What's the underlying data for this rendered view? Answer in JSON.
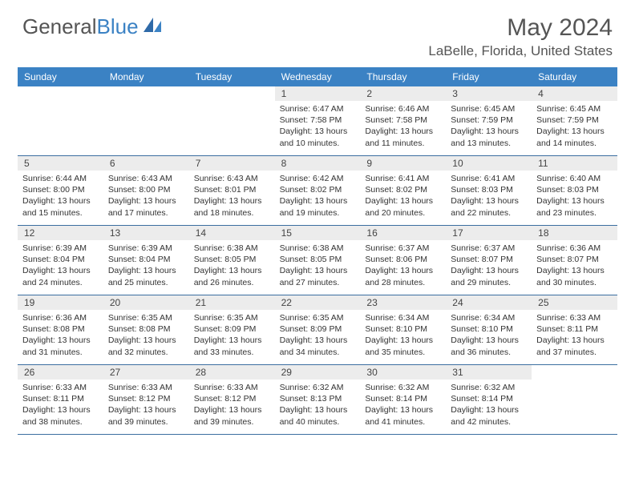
{
  "logo": {
    "text1": "General",
    "text2": "Blue"
  },
  "title": "May 2024",
  "location": "LaBelle, Florida, United States",
  "day_names": [
    "Sunday",
    "Monday",
    "Tuesday",
    "Wednesday",
    "Thursday",
    "Friday",
    "Saturday"
  ],
  "colors": {
    "header_bg": "#3b82c4",
    "header_text": "#ffffff",
    "daynum_bg": "#ececec",
    "border": "#3b6ea0",
    "title_color": "#555555"
  },
  "weeks": [
    [
      {
        "n": "",
        "sr": "",
        "ss": "",
        "dl1": "",
        "dl2": ""
      },
      {
        "n": "",
        "sr": "",
        "ss": "",
        "dl1": "",
        "dl2": ""
      },
      {
        "n": "",
        "sr": "",
        "ss": "",
        "dl1": "",
        "dl2": ""
      },
      {
        "n": "1",
        "sr": "Sunrise: 6:47 AM",
        "ss": "Sunset: 7:58 PM",
        "dl1": "Daylight: 13 hours",
        "dl2": "and 10 minutes."
      },
      {
        "n": "2",
        "sr": "Sunrise: 6:46 AM",
        "ss": "Sunset: 7:58 PM",
        "dl1": "Daylight: 13 hours",
        "dl2": "and 11 minutes."
      },
      {
        "n": "3",
        "sr": "Sunrise: 6:45 AM",
        "ss": "Sunset: 7:59 PM",
        "dl1": "Daylight: 13 hours",
        "dl2": "and 13 minutes."
      },
      {
        "n": "4",
        "sr": "Sunrise: 6:45 AM",
        "ss": "Sunset: 7:59 PM",
        "dl1": "Daylight: 13 hours",
        "dl2": "and 14 minutes."
      }
    ],
    [
      {
        "n": "5",
        "sr": "Sunrise: 6:44 AM",
        "ss": "Sunset: 8:00 PM",
        "dl1": "Daylight: 13 hours",
        "dl2": "and 15 minutes."
      },
      {
        "n": "6",
        "sr": "Sunrise: 6:43 AM",
        "ss": "Sunset: 8:00 PM",
        "dl1": "Daylight: 13 hours",
        "dl2": "and 17 minutes."
      },
      {
        "n": "7",
        "sr": "Sunrise: 6:43 AM",
        "ss": "Sunset: 8:01 PM",
        "dl1": "Daylight: 13 hours",
        "dl2": "and 18 minutes."
      },
      {
        "n": "8",
        "sr": "Sunrise: 6:42 AM",
        "ss": "Sunset: 8:02 PM",
        "dl1": "Daylight: 13 hours",
        "dl2": "and 19 minutes."
      },
      {
        "n": "9",
        "sr": "Sunrise: 6:41 AM",
        "ss": "Sunset: 8:02 PM",
        "dl1": "Daylight: 13 hours",
        "dl2": "and 20 minutes."
      },
      {
        "n": "10",
        "sr": "Sunrise: 6:41 AM",
        "ss": "Sunset: 8:03 PM",
        "dl1": "Daylight: 13 hours",
        "dl2": "and 22 minutes."
      },
      {
        "n": "11",
        "sr": "Sunrise: 6:40 AM",
        "ss": "Sunset: 8:03 PM",
        "dl1": "Daylight: 13 hours",
        "dl2": "and 23 minutes."
      }
    ],
    [
      {
        "n": "12",
        "sr": "Sunrise: 6:39 AM",
        "ss": "Sunset: 8:04 PM",
        "dl1": "Daylight: 13 hours",
        "dl2": "and 24 minutes."
      },
      {
        "n": "13",
        "sr": "Sunrise: 6:39 AM",
        "ss": "Sunset: 8:04 PM",
        "dl1": "Daylight: 13 hours",
        "dl2": "and 25 minutes."
      },
      {
        "n": "14",
        "sr": "Sunrise: 6:38 AM",
        "ss": "Sunset: 8:05 PM",
        "dl1": "Daylight: 13 hours",
        "dl2": "and 26 minutes."
      },
      {
        "n": "15",
        "sr": "Sunrise: 6:38 AM",
        "ss": "Sunset: 8:05 PM",
        "dl1": "Daylight: 13 hours",
        "dl2": "and 27 minutes."
      },
      {
        "n": "16",
        "sr": "Sunrise: 6:37 AM",
        "ss": "Sunset: 8:06 PM",
        "dl1": "Daylight: 13 hours",
        "dl2": "and 28 minutes."
      },
      {
        "n": "17",
        "sr": "Sunrise: 6:37 AM",
        "ss": "Sunset: 8:07 PM",
        "dl1": "Daylight: 13 hours",
        "dl2": "and 29 minutes."
      },
      {
        "n": "18",
        "sr": "Sunrise: 6:36 AM",
        "ss": "Sunset: 8:07 PM",
        "dl1": "Daylight: 13 hours",
        "dl2": "and 30 minutes."
      }
    ],
    [
      {
        "n": "19",
        "sr": "Sunrise: 6:36 AM",
        "ss": "Sunset: 8:08 PM",
        "dl1": "Daylight: 13 hours",
        "dl2": "and 31 minutes."
      },
      {
        "n": "20",
        "sr": "Sunrise: 6:35 AM",
        "ss": "Sunset: 8:08 PM",
        "dl1": "Daylight: 13 hours",
        "dl2": "and 32 minutes."
      },
      {
        "n": "21",
        "sr": "Sunrise: 6:35 AM",
        "ss": "Sunset: 8:09 PM",
        "dl1": "Daylight: 13 hours",
        "dl2": "and 33 minutes."
      },
      {
        "n": "22",
        "sr": "Sunrise: 6:35 AM",
        "ss": "Sunset: 8:09 PM",
        "dl1": "Daylight: 13 hours",
        "dl2": "and 34 minutes."
      },
      {
        "n": "23",
        "sr": "Sunrise: 6:34 AM",
        "ss": "Sunset: 8:10 PM",
        "dl1": "Daylight: 13 hours",
        "dl2": "and 35 minutes."
      },
      {
        "n": "24",
        "sr": "Sunrise: 6:34 AM",
        "ss": "Sunset: 8:10 PM",
        "dl1": "Daylight: 13 hours",
        "dl2": "and 36 minutes."
      },
      {
        "n": "25",
        "sr": "Sunrise: 6:33 AM",
        "ss": "Sunset: 8:11 PM",
        "dl1": "Daylight: 13 hours",
        "dl2": "and 37 minutes."
      }
    ],
    [
      {
        "n": "26",
        "sr": "Sunrise: 6:33 AM",
        "ss": "Sunset: 8:11 PM",
        "dl1": "Daylight: 13 hours",
        "dl2": "and 38 minutes."
      },
      {
        "n": "27",
        "sr": "Sunrise: 6:33 AM",
        "ss": "Sunset: 8:12 PM",
        "dl1": "Daylight: 13 hours",
        "dl2": "and 39 minutes."
      },
      {
        "n": "28",
        "sr": "Sunrise: 6:33 AM",
        "ss": "Sunset: 8:12 PM",
        "dl1": "Daylight: 13 hours",
        "dl2": "and 39 minutes."
      },
      {
        "n": "29",
        "sr": "Sunrise: 6:32 AM",
        "ss": "Sunset: 8:13 PM",
        "dl1": "Daylight: 13 hours",
        "dl2": "and 40 minutes."
      },
      {
        "n": "30",
        "sr": "Sunrise: 6:32 AM",
        "ss": "Sunset: 8:14 PM",
        "dl1": "Daylight: 13 hours",
        "dl2": "and 41 minutes."
      },
      {
        "n": "31",
        "sr": "Sunrise: 6:32 AM",
        "ss": "Sunset: 8:14 PM",
        "dl1": "Daylight: 13 hours",
        "dl2": "and 42 minutes."
      },
      {
        "n": "",
        "sr": "",
        "ss": "",
        "dl1": "",
        "dl2": ""
      }
    ]
  ]
}
